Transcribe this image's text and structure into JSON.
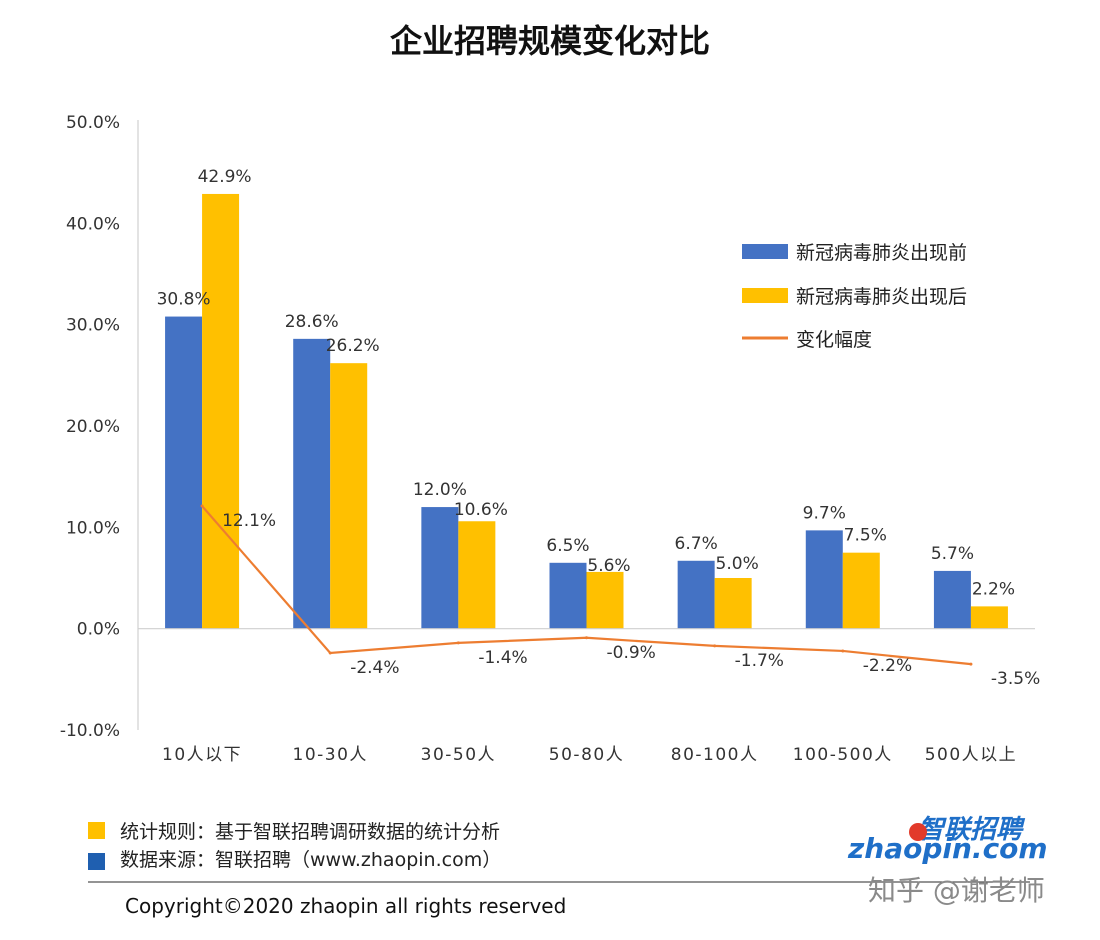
{
  "chart_data": {
    "type": "bar",
    "title": "企业招聘规模变化对比",
    "categories": [
      "10人以下",
      "10-30人",
      "30-50人",
      "50-80人",
      "80-100人",
      "100-500人",
      "500人以上"
    ],
    "series": [
      {
        "name": "新冠病毒肺炎出现前",
        "color": "#4472c4",
        "kind": "bar",
        "values": [
          30.8,
          28.6,
          12.0,
          6.5,
          6.7,
          9.7,
          5.7
        ],
        "labels": [
          "30.8%",
          "28.6%",
          "12.0%",
          "6.5%",
          "6.7%",
          "9.7%",
          "5.7%"
        ]
      },
      {
        "name": "新冠病毒肺炎出现后",
        "color": "#ffc000",
        "kind": "bar",
        "values": [
          42.9,
          26.2,
          10.6,
          5.6,
          5.0,
          7.5,
          2.2
        ],
        "labels": [
          "42.9%",
          "26.2%",
          "10.6%",
          "5.6%",
          "5.0%",
          "7.5%",
          "2.2%"
        ]
      },
      {
        "name": "变化幅度",
        "color": "#ed7d31",
        "kind": "line",
        "values": [
          12.1,
          -2.4,
          -1.4,
          -0.9,
          -1.7,
          -2.2,
          -3.5
        ],
        "labels": [
          "12.1%",
          "-2.4%",
          "-1.4%",
          "-0.9%",
          "-1.7%",
          "-2.2%",
          "-3.5%"
        ]
      }
    ],
    "ylim": [
      -10,
      50
    ],
    "yticks": [
      "-10.0%",
      "0.0%",
      "10.0%",
      "20.0%",
      "30.0%",
      "40.0%",
      "50.0%"
    ],
    "ytick_values": [
      -10,
      0,
      10,
      20,
      30,
      40,
      50
    ],
    "xlabel": "",
    "ylabel": "",
    "grid": false,
    "legend_position": "right"
  },
  "footer": {
    "note1": "统计规则：基于智联招聘调研数据的统计分析",
    "note2": "数据来源：智联招聘（www.zhaopin.com）",
    "note1_color": "#ffc000",
    "note2_color": "#1f5fb0",
    "copyright": "Copyright©2020 zhaopin all rights reserved"
  },
  "brand": {
    "cn": "智联招聘",
    "en": "zhaopin.com"
  },
  "watermark": "知乎 @谢老师"
}
